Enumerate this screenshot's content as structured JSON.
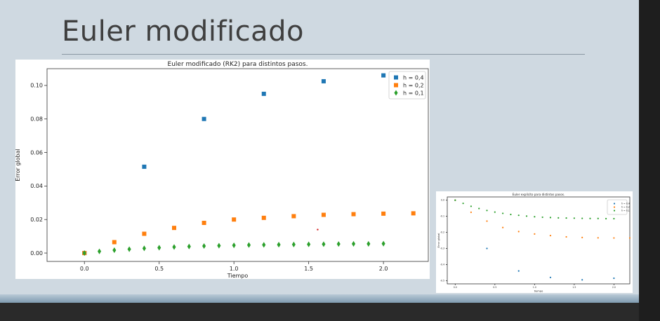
{
  "slide": {
    "title": "Euler modificado"
  },
  "chart_data": [
    {
      "type": "scatter",
      "title": "Euler modificado (RK2) para distintos pasos.",
      "xlabel": "Tiempo",
      "ylabel": "Error global",
      "xlim": [
        -0.25,
        2.3
      ],
      "ylim": [
        -0.005,
        0.11
      ],
      "xticks": [
        "0.0",
        "0.5",
        "1.0",
        "1.5",
        "2.0"
      ],
      "yticks": [
        "0.00",
        "0.02",
        "0.04",
        "0.06",
        "0.08",
        "0.10"
      ],
      "legend_position": "top-right",
      "series": [
        {
          "name": "h = 0,4",
          "marker": "square",
          "color": "#1f77b4",
          "x": [
            0,
            0.4,
            0.8,
            1.2,
            1.6,
            2.0
          ],
          "y": [
            0,
            0.0515,
            0.08,
            0.095,
            0.1025,
            0.106
          ]
        },
        {
          "name": "h = 0,2",
          "marker": "square",
          "color": "#ff7f0e",
          "x": [
            0,
            0.2,
            0.4,
            0.6,
            0.8,
            1.0,
            1.2,
            1.4,
            1.6,
            1.8,
            2.0,
            2.2
          ],
          "y": [
            0,
            0.0065,
            0.0115,
            0.015,
            0.018,
            0.02,
            0.021,
            0.022,
            0.0228,
            0.0232,
            0.0235,
            0.0237
          ]
        },
        {
          "name": "h = 0,1",
          "marker": "diamond",
          "color": "#2ca02c",
          "x": [
            0,
            0.1,
            0.2,
            0.3,
            0.4,
            0.5,
            0.6,
            0.7,
            0.8,
            0.9,
            1.0,
            1.1,
            1.2,
            1.3,
            1.4,
            1.5,
            1.6,
            1.7,
            1.8,
            1.9,
            2.0
          ],
          "y": [
            0,
            0.001,
            0.0017,
            0.0023,
            0.0028,
            0.0032,
            0.0036,
            0.0039,
            0.0042,
            0.0044,
            0.0046,
            0.0048,
            0.0049,
            0.005,
            0.0051,
            0.0052,
            0.0053,
            0.0054,
            0.0055,
            0.0055,
            0.0056
          ]
        }
      ],
      "annotation": {
        "x": 1.56,
        "y": 0.014,
        "color": "#d62728"
      }
    },
    {
      "type": "scatter",
      "title": "Euler explícito para distintos pasos.",
      "xlabel": "tiempo",
      "ylabel": "Error global",
      "xlim": [
        -0.1,
        2.2
      ],
      "ylim": [
        -0.52,
        0.02
      ],
      "xticks": [
        "0.0",
        "0.5",
        "1.0",
        "1.5",
        "2.0"
      ],
      "yticks": [
        "0.0",
        "-0.1",
        "-0.2",
        "-0.3",
        "-0.4",
        "-0.5"
      ],
      "legend_position": "top-right",
      "series": [
        {
          "name": "h = 0,4",
          "marker": "circle",
          "color": "#1f77b4",
          "x": [
            0,
            0.4,
            0.8,
            1.2,
            1.6,
            2.0
          ],
          "y": [
            0,
            -0.3,
            -0.44,
            -0.48,
            -0.495,
            -0.485
          ]
        },
        {
          "name": "h = 0,2",
          "marker": "circle",
          "color": "#ff7f0e",
          "x": [
            0,
            0.2,
            0.4,
            0.6,
            0.8,
            1.0,
            1.2,
            1.4,
            1.6,
            1.8,
            2.0,
            2.2
          ],
          "y": [
            0,
            -0.075,
            -0.13,
            -0.17,
            -0.195,
            -0.21,
            -0.22,
            -0.228,
            -0.232,
            -0.234,
            -0.235,
            -0.235
          ]
        },
        {
          "name": "h = 0,1",
          "marker": "circle",
          "color": "#2ca02c",
          "x": [
            0,
            0.1,
            0.2,
            0.3,
            0.4,
            0.5,
            0.6,
            0.7,
            0.8,
            0.9,
            1.0,
            1.1,
            1.2,
            1.3,
            1.4,
            1.5,
            1.6,
            1.7,
            1.8,
            1.9,
            2.0
          ],
          "y": [
            0,
            -0.02,
            -0.038,
            -0.052,
            -0.064,
            -0.074,
            -0.082,
            -0.089,
            -0.094,
            -0.099,
            -0.103,
            -0.106,
            -0.108,
            -0.11,
            -0.111,
            -0.112,
            -0.113,
            -0.114,
            -0.114,
            -0.115,
            -0.115
          ]
        }
      ]
    }
  ]
}
